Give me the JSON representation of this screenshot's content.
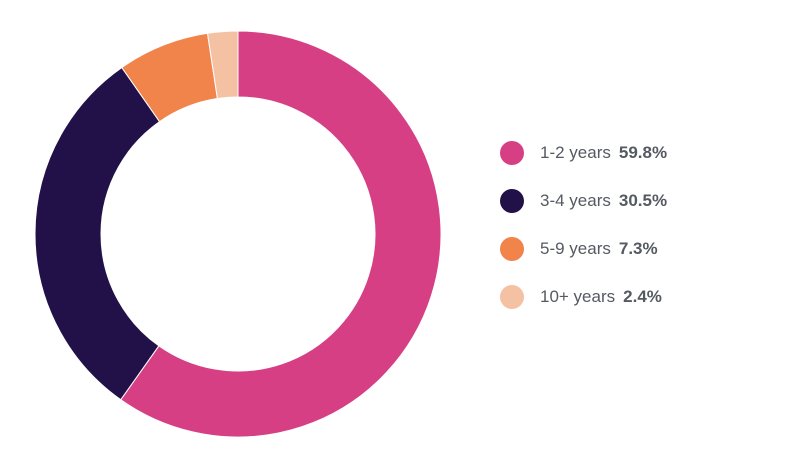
{
  "chart_data": {
    "type": "pie",
    "variant": "donut",
    "legend_position": "right",
    "categories": [
      "1-2 years",
      "3-4 years",
      "5-9 years",
      "10+ years"
    ],
    "values": [
      59.8,
      30.5,
      7.3,
      2.4
    ],
    "value_labels": [
      "59.8%",
      "30.5%",
      "7.3%",
      "2.4%"
    ],
    "colors": [
      "#d63f84",
      "#221149",
      "#f0844a",
      "#f5c1a3"
    ]
  }
}
